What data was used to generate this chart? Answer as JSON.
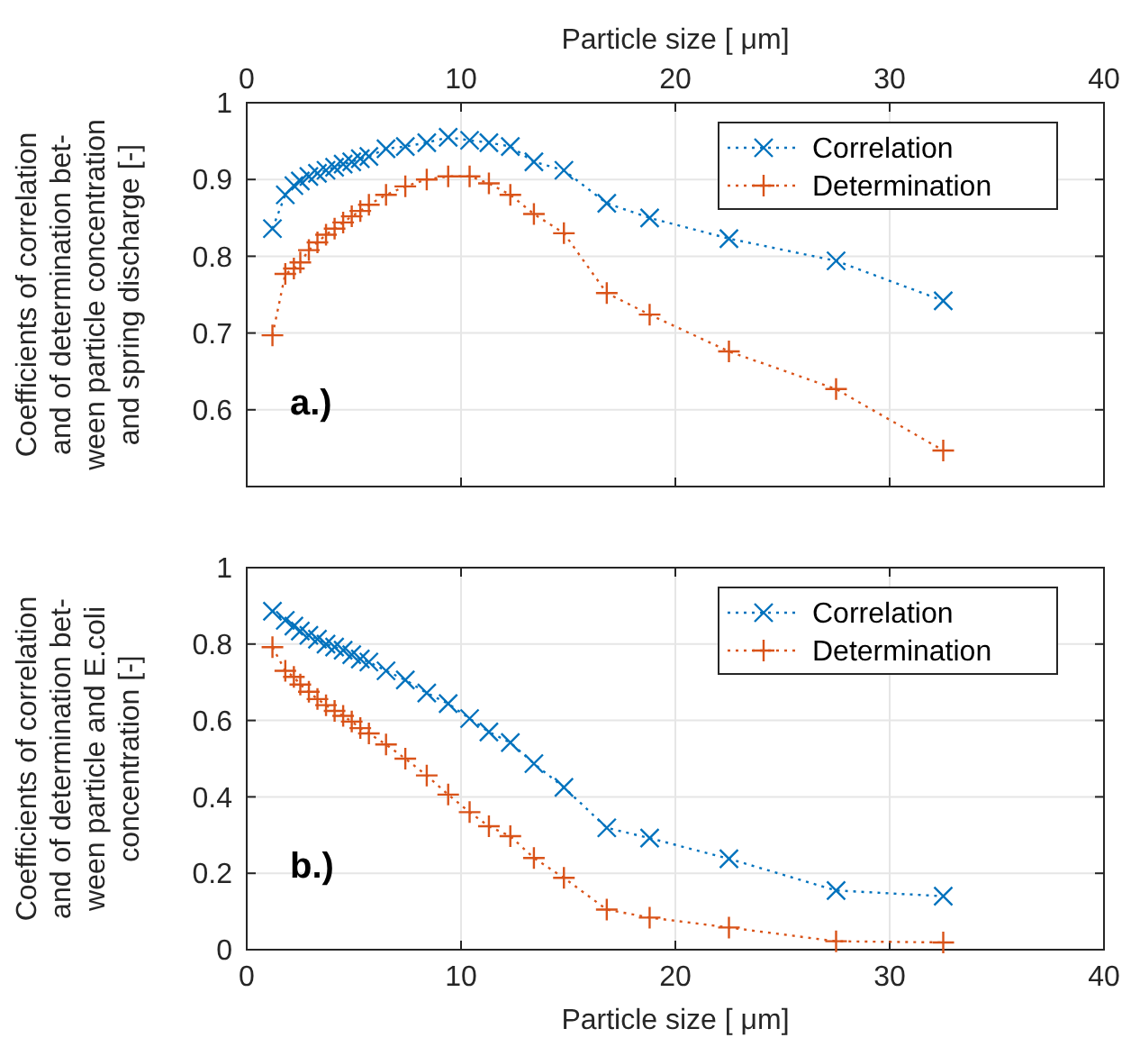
{
  "chart_data": [
    {
      "type": "line",
      "xlim": [
        0,
        40
      ],
      "x2lim": [
        0,
        40
      ],
      "x2ticks": [
        0,
        10,
        20,
        30,
        40
      ],
      "x2label": "Particle size [ μm]",
      "tick_labels": "y",
      "ylabel": "Coefficients of correlation\nand of determination bet-\nween particle concentration\nand spring discharge [-]",
      "ylim": [
        0.5,
        1
      ],
      "yticks": [
        {
          "value": 0.5,
          "label": null
        },
        0.6,
        0.7,
        0.8,
        0.9,
        1
      ],
      "grid": true,
      "legend": "top right",
      "line_style": "dotted",
      "annotations": [
        "a.)"
      ],
      "x": [
        1.2,
        1.8,
        2.2,
        2.5,
        2.9,
        3.3,
        3.7,
        4.1,
        4.5,
        4.9,
        5.3,
        5.7,
        6.5,
        7.4,
        8.4,
        9.4,
        10.4,
        11.3,
        12.3,
        13.4,
        14.8,
        16.8,
        18.8,
        22.5,
        27.5,
        32.5
      ],
      "series": [
        {
          "name": "Correlation",
          "color": "#0072bd",
          "marker": "cross",
          "values": [
            0.836,
            0.88,
            0.892,
            0.898,
            0.904,
            0.908,
            0.912,
            0.916,
            0.92,
            0.923,
            0.927,
            0.93,
            0.94,
            0.943,
            0.948,
            0.955,
            0.951,
            0.948,
            0.943,
            0.923,
            0.912,
            0.869,
            0.85,
            0.823,
            0.794,
            0.742
          ]
        },
        {
          "name": "Determination",
          "color": "#d95319",
          "marker": "plus",
          "values": [
            0.697,
            0.777,
            0.784,
            0.792,
            0.808,
            0.818,
            0.828,
            0.836,
            0.844,
            0.852,
            0.859,
            0.867,
            0.88,
            0.891,
            0.9,
            0.904,
            0.904,
            0.895,
            0.88,
            0.855,
            0.83,
            0.752,
            0.724,
            0.676,
            0.627,
            0.547
          ]
        }
      ]
    },
    {
      "type": "line",
      "xlim": [
        0,
        40
      ],
      "xticks": [
        0,
        10,
        20,
        30,
        40
      ],
      "xlabel": "Particle size [ μm]",
      "ylabel": "Coefficients of correlation\nand of determination bet-\nween particle and E.coli\nconcentration [-]",
      "ylim": [
        0,
        1
      ],
      "yticks": [
        0,
        0.2,
        0.4,
        0.6,
        0.8,
        1
      ],
      "grid": true,
      "legend": "top right",
      "line_style": "dotted",
      "annotations": [
        "b.)"
      ],
      "x": [
        1.2,
        1.8,
        2.2,
        2.5,
        2.9,
        3.3,
        3.7,
        4.1,
        4.5,
        4.9,
        5.3,
        5.7,
        6.5,
        7.4,
        8.4,
        9.4,
        10.4,
        11.3,
        12.3,
        13.4,
        14.8,
        16.8,
        18.8,
        22.5,
        27.5,
        32.5
      ],
      "series": [
        {
          "name": "Correlation",
          "color": "#0072bd",
          "marker": "cross",
          "values": [
            0.886,
            0.862,
            0.847,
            0.834,
            0.823,
            0.813,
            0.8,
            0.792,
            0.784,
            0.772,
            0.761,
            0.753,
            0.73,
            0.706,
            0.672,
            0.644,
            0.605,
            0.57,
            0.542,
            0.487,
            0.425,
            0.319,
            0.292,
            0.238,
            0.155,
            0.14
          ]
        },
        {
          "name": "Determination",
          "color": "#d95319",
          "marker": "plus",
          "values": [
            0.792,
            0.73,
            0.714,
            0.694,
            0.675,
            0.656,
            0.64,
            0.625,
            0.612,
            0.597,
            0.58,
            0.566,
            0.537,
            0.5,
            0.456,
            0.406,
            0.36,
            0.323,
            0.297,
            0.24,
            0.188,
            0.105,
            0.084,
            0.058,
            0.022,
            0.019
          ]
        }
      ]
    }
  ]
}
